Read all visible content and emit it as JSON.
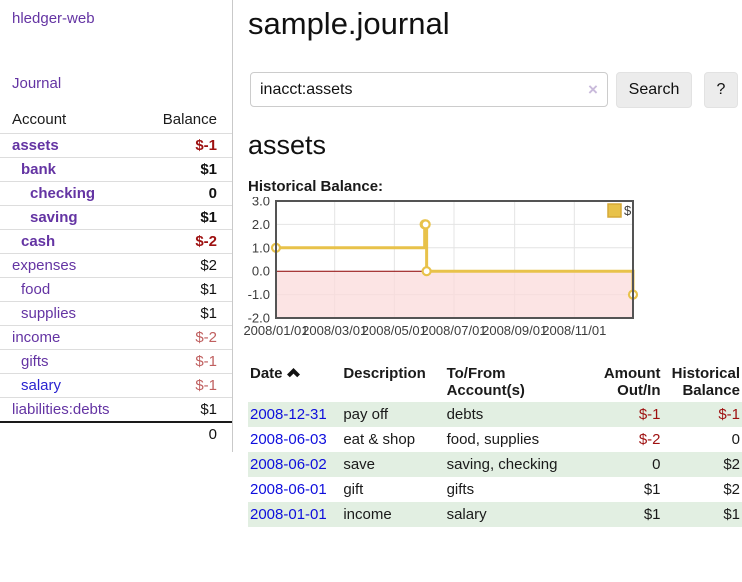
{
  "app": {
    "title": "hledger-web",
    "nav_journal": "Journal"
  },
  "sidebar": {
    "columns": {
      "account": "Account",
      "balance": "Balance"
    },
    "accounts": [
      {
        "name": "assets",
        "balance": "$-1",
        "indent": 1,
        "bold": true
      },
      {
        "name": "bank",
        "balance": "$1",
        "indent": 2,
        "bold": true
      },
      {
        "name": "checking",
        "balance": "0",
        "indent": 3,
        "bold": true
      },
      {
        "name": "saving",
        "balance": "$1",
        "indent": 3,
        "bold": true
      },
      {
        "name": "cash",
        "balance": "$-2",
        "indent": 2,
        "bold": true
      },
      {
        "name": "expenses",
        "balance": "$2",
        "indent": 1,
        "bold": false
      },
      {
        "name": "food",
        "balance": "$1",
        "indent": 2,
        "bold": false
      },
      {
        "name": "supplies",
        "balance": "$1",
        "indent": 2,
        "bold": false
      },
      {
        "name": "income",
        "balance": "$-2",
        "indent": 1,
        "bold": false
      },
      {
        "name": "gifts",
        "balance": "$-1",
        "indent": 2,
        "bold": false
      },
      {
        "name": "salary",
        "balance": "$-1",
        "indent": 2,
        "bold": false,
        "link_style": "blue"
      },
      {
        "name": "liabilities:debts",
        "balance": "$1",
        "indent": 1,
        "bold": false
      }
    ],
    "total": "0"
  },
  "header": {
    "title": "sample.journal"
  },
  "search": {
    "value": "inacct:assets",
    "clear_icon": "×",
    "button_label": "Search",
    "help_label": "?"
  },
  "account_page": {
    "heading": "assets",
    "chart_label": "Historical Balance:"
  },
  "chart_data": {
    "type": "line",
    "style": "step",
    "title": "Historical Balance",
    "series": [
      {
        "name": "$",
        "color": "#e8c24a",
        "points": [
          [
            "2008-01-01",
            1
          ],
          [
            "2008-06-01",
            2
          ],
          [
            "2008-06-02",
            2
          ],
          [
            "2008-06-03",
            0
          ],
          [
            "2008-12-31",
            -1
          ]
        ]
      }
    ],
    "x_range": [
      "2008-01-01",
      "2008-12-31"
    ],
    "xticks": [
      "2008/01/01",
      "2008/03/01",
      "2008/05/01",
      "2008/07/01",
      "2008/09/01",
      "2008/11/01"
    ],
    "yticks": [
      "3.0",
      "2.0",
      "1.0",
      "0.0",
      "-1.0",
      "-2.0"
    ],
    "ylim": [
      -2,
      3
    ],
    "grid": true,
    "legend_position": "top-right",
    "negative_region_color": "#fbdbdb",
    "zero_line_color": "#8b0000"
  },
  "register": {
    "columns": [
      {
        "label": "Date",
        "sortable": true
      },
      {
        "label": "Description"
      },
      {
        "label": "To/From Account(s)"
      },
      {
        "label": "Amount Out/In"
      },
      {
        "label": "Historical Balance"
      }
    ],
    "rows": [
      {
        "date": "2008-12-31",
        "description": "pay off",
        "accounts": "debts",
        "amount": "$-1",
        "balance": "$-1"
      },
      {
        "date": "2008-06-03",
        "description": "eat & shop",
        "accounts": "food, supplies",
        "amount": "$-2",
        "balance": "0"
      },
      {
        "date": "2008-06-02",
        "description": "save",
        "accounts": "saving, checking",
        "amount": "0",
        "balance": "$2"
      },
      {
        "date": "2008-06-01",
        "description": "gift",
        "accounts": "gifts",
        "amount": "$1",
        "balance": "$2"
      },
      {
        "date": "2008-01-01",
        "description": "income",
        "accounts": "salary",
        "amount": "$1",
        "balance": "$1"
      }
    ]
  }
}
